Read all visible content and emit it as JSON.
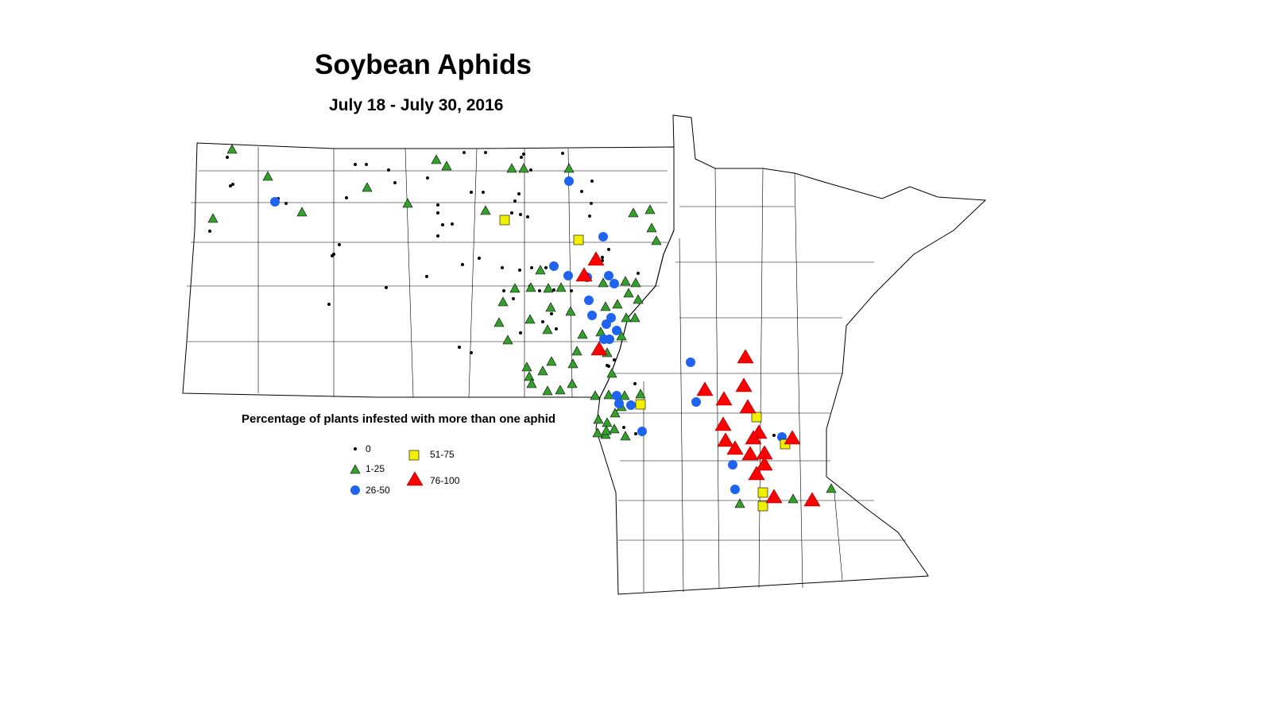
{
  "title": "Soybean Aphids",
  "subtitle": "July 18 - July 30, 2016",
  "legend": {
    "title": "Percentage of plants infested with more than one aphid",
    "items": [
      {
        "label": "0",
        "symbol": "small-dot",
        "color": "#000000"
      },
      {
        "label": "1-25",
        "symbol": "small-triangle",
        "color": "#33a02c"
      },
      {
        "label": "26-50",
        "symbol": "circle",
        "color": "#1e64f0"
      },
      {
        "label": "51-75",
        "symbol": "square",
        "color": "#f0f000"
      },
      {
        "label": "76-100",
        "symbol": "large-triangle",
        "color": "#ff0000"
      }
    ]
  },
  "regions": [
    "North Dakota",
    "Minnesota"
  ]
}
